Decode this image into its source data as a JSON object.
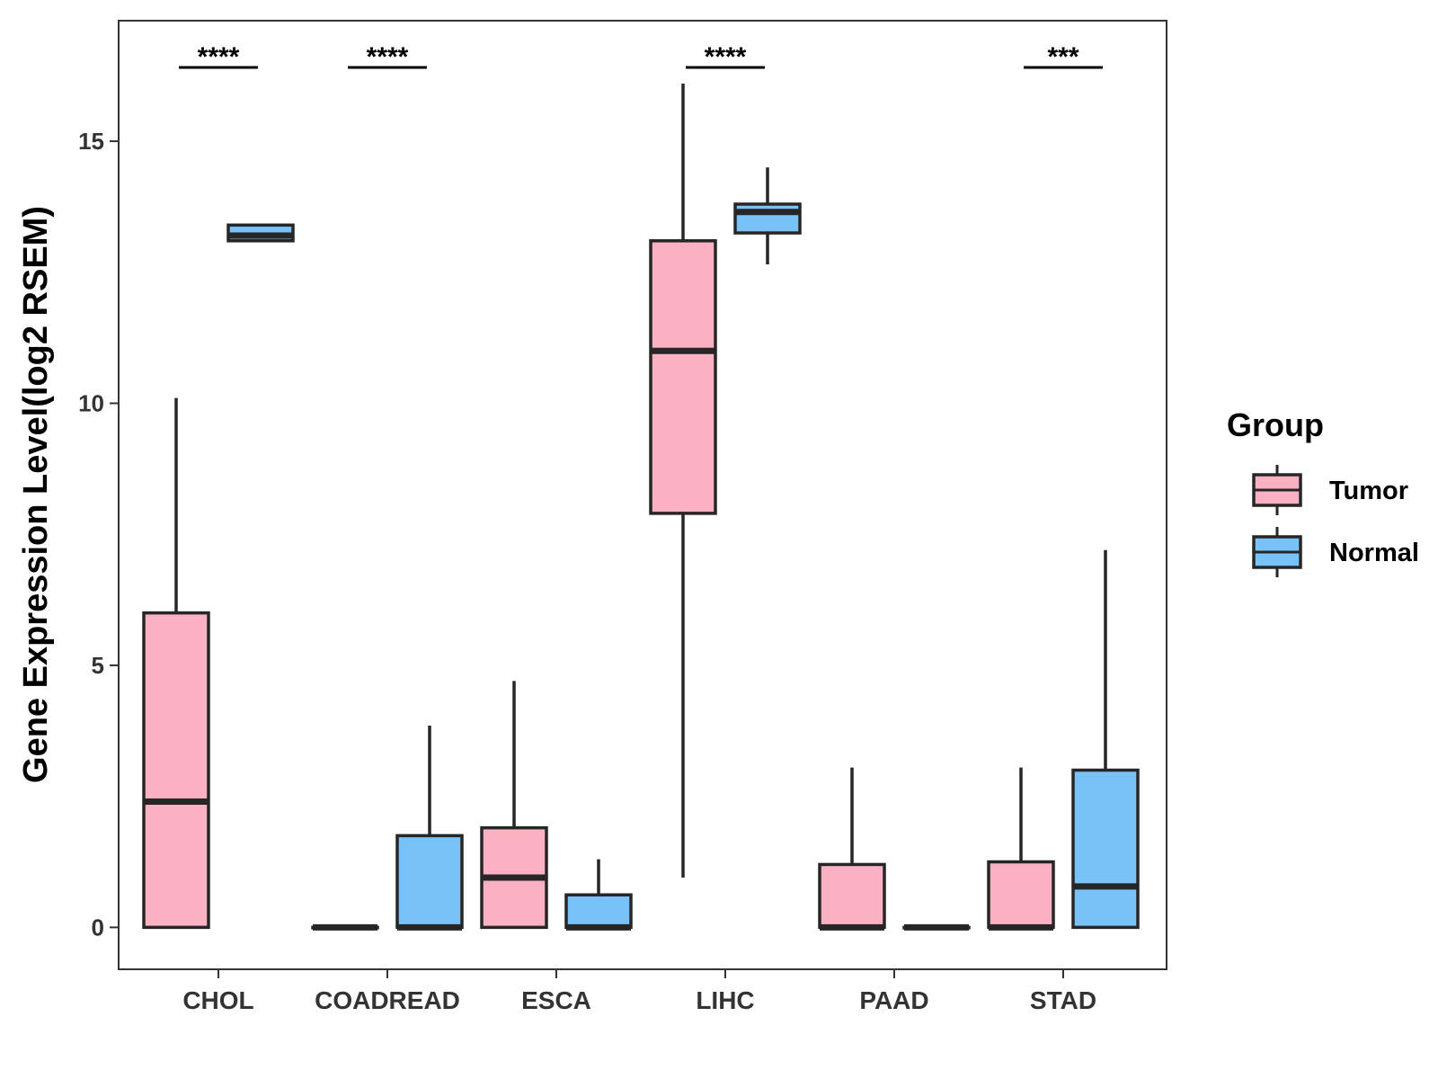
{
  "chart_data": {
    "type": "boxplot",
    "ylabel": "Gene Expression Level(log2 RSEM)",
    "xlabel": "",
    "ylim": [
      -0.8,
      17.3
    ],
    "yticks": [
      0,
      5,
      10,
      15
    ],
    "categories": [
      "CHOL",
      "COADREAD",
      "ESCA",
      "LIHC",
      "PAAD",
      "STAD"
    ],
    "legend": {
      "title": "Group",
      "position": "right",
      "entries": [
        {
          "name": "Tumor",
          "color": "#FBB1C3"
        },
        {
          "name": "Normal",
          "color": "#79C2F8"
        }
      ]
    },
    "series": [
      {
        "name": "Tumor",
        "color": "#FBB1C3",
        "boxes": [
          {
            "category": "CHOL",
            "lower_whisker": 0,
            "q1": 0,
            "median": 2.4,
            "q3": 6.0,
            "upper_whisker": 10.1
          },
          {
            "category": "COADREAD",
            "lower_whisker": 0,
            "q1": 0,
            "median": 0,
            "q3": 0,
            "upper_whisker": 0
          },
          {
            "category": "ESCA",
            "lower_whisker": 0,
            "q1": 0,
            "median": 0.95,
            "q3": 1.9,
            "upper_whisker": 4.7
          },
          {
            "category": "LIHC",
            "lower_whisker": 0.95,
            "q1": 7.9,
            "median": 11.0,
            "q3": 13.1,
            "upper_whisker": 16.1
          },
          {
            "category": "PAAD",
            "lower_whisker": 0,
            "q1": 0,
            "median": 0,
            "q3": 1.2,
            "upper_whisker": 3.05
          },
          {
            "category": "STAD",
            "lower_whisker": 0,
            "q1": 0,
            "median": 0,
            "q3": 1.25,
            "upper_whisker": 3.05
          }
        ]
      },
      {
        "name": "Normal",
        "color": "#79C2F8",
        "boxes": [
          {
            "category": "CHOL",
            "lower_whisker": 13.1,
            "q1": 13.1,
            "median": 13.2,
            "q3": 13.4,
            "upper_whisker": 13.4
          },
          {
            "category": "COADREAD",
            "lower_whisker": 0,
            "q1": 0,
            "median": 0,
            "q3": 1.75,
            "upper_whisker": 3.85
          },
          {
            "category": "ESCA",
            "lower_whisker": 0,
            "q1": 0,
            "median": 0,
            "q3": 0.62,
            "upper_whisker": 1.3
          },
          {
            "category": "LIHC",
            "lower_whisker": 12.65,
            "q1": 13.25,
            "median": 13.65,
            "q3": 13.8,
            "upper_whisker": 14.5
          },
          {
            "category": "PAAD",
            "lower_whisker": 0,
            "q1": 0,
            "median": 0,
            "q3": 0,
            "upper_whisker": 0
          },
          {
            "category": "STAD",
            "lower_whisker": 0,
            "q1": 0,
            "median": 0.78,
            "q3": 3.0,
            "upper_whisker": 7.2
          }
        ]
      }
    ],
    "annotations": [
      {
        "category": "CHOL",
        "label": "****"
      },
      {
        "category": "COADREAD",
        "label": "****"
      },
      {
        "category": "LIHC",
        "label": "****"
      },
      {
        "category": "STAD",
        "label": "***"
      }
    ],
    "grid": false
  }
}
